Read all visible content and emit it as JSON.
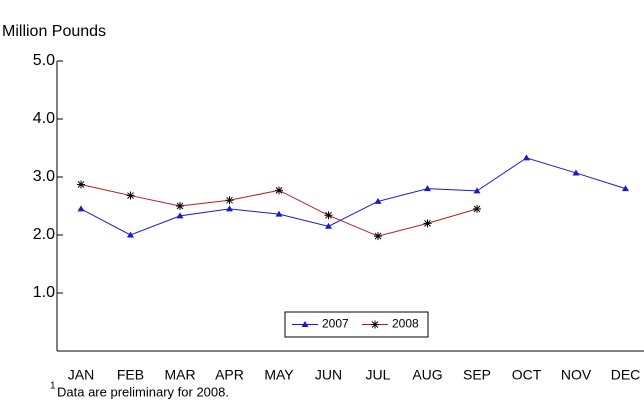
{
  "chart_data": {
    "type": "line",
    "y_axis_label": "Million Pounds",
    "categories": [
      "JAN",
      "FEB",
      "MAR",
      "APR",
      "MAY",
      "JUN",
      "JUL",
      "AUG",
      "SEP",
      "OCT",
      "NOV",
      "DEC"
    ],
    "series": [
      {
        "name": "2007",
        "color": "#1a1acc",
        "marker": "triangle",
        "values": [
          2.45,
          2.0,
          2.33,
          2.45,
          2.36,
          2.15,
          2.58,
          2.8,
          2.76,
          3.33,
          3.07,
          2.8
        ]
      },
      {
        "name": "2008",
        "color": "#b02020",
        "marker": "asterisk",
        "values": [
          2.87,
          2.68,
          2.5,
          2.6,
          2.77,
          2.34,
          1.98,
          2.2,
          2.45,
          null,
          null,
          null
        ]
      }
    ],
    "ylim": [
      0,
      5
    ],
    "yticks": [
      {
        "value": 1,
        "label": "1.0"
      },
      {
        "value": 2,
        "label": "2.0"
      },
      {
        "value": 3,
        "label": "3.0"
      },
      {
        "value": 4,
        "label": "4.0"
      },
      {
        "value": 5,
        "label": "5.0"
      }
    ],
    "footnote_marker": "1",
    "footnote": "Data are preliminary for 2008."
  }
}
